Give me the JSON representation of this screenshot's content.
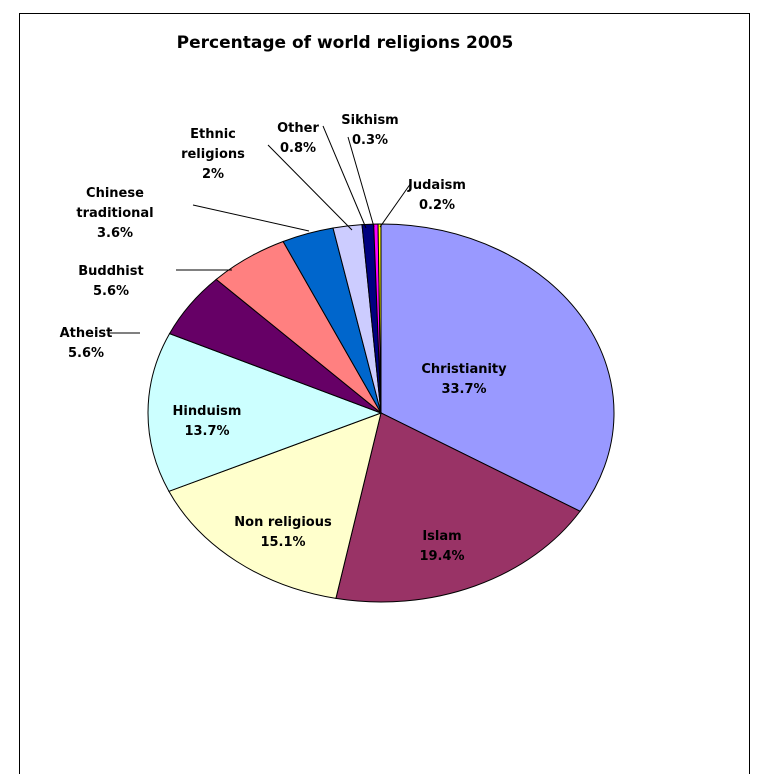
{
  "chart_data": {
    "type": "pie",
    "title": "Percentage of world religions 2005",
    "slices": [
      {
        "label": [
          "Christianity"
        ],
        "value": 33.7,
        "value_label": "33.7%",
        "color": "#9999ff"
      },
      {
        "label": [
          "Islam"
        ],
        "value": 19.4,
        "value_label": "19.4%",
        "color": "#993366"
      },
      {
        "label": [
          "Non religious"
        ],
        "value": 15.1,
        "value_label": "15.1%",
        "color": "#ffffcc"
      },
      {
        "label": [
          "Hinduism"
        ],
        "value": 13.7,
        "value_label": "13.7%",
        "color": "#ccffff"
      },
      {
        "label": [
          "Atheist"
        ],
        "value": 5.6,
        "value_label": "5.6%",
        "color": "#660066"
      },
      {
        "label": [
          "Buddhist"
        ],
        "value": 5.6,
        "value_label": "5.6%",
        "color": "#ff8080"
      },
      {
        "label": [
          "Chinese",
          "traditional"
        ],
        "value": 3.6,
        "value_label": "3.6%",
        "color": "#0066cc"
      },
      {
        "label": [
          "Ethnic",
          "religions"
        ],
        "value": 2,
        "value_label": "2%",
        "color": "#ccccff"
      },
      {
        "label": [
          "Other"
        ],
        "value": 0.8,
        "value_label": "0.8%",
        "color": "#000080"
      },
      {
        "label": [
          "Sikhism"
        ],
        "value": 0.3,
        "value_label": "0.3%",
        "color": "#ff00ff"
      },
      {
        "label": [
          "Judaism"
        ],
        "value": 0.2,
        "value_label": "0.2%",
        "color": "#ffff00"
      }
    ]
  }
}
